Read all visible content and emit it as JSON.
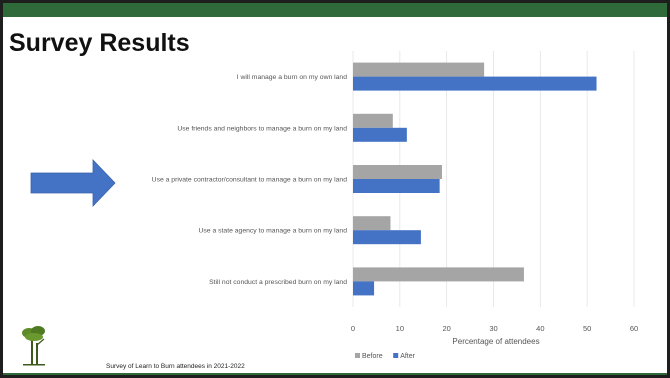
{
  "slide": {
    "title": "Survey Results",
    "footnote": "Survey of Learn to Burn attendees in 2021-2022",
    "arrow_color": "#4472c4",
    "band_color": "#2f6b3a"
  },
  "chart_data": {
    "type": "bar",
    "orientation": "horizontal",
    "categories": [
      "I will manage a burn on my own land",
      "Use friends and neighbors to manage a burn on my land",
      "Use a private contractor/consultant to manage a burn on my land",
      "Use a state agency to manage a burn on my land",
      "Still not conduct a prescribed burn on my land"
    ],
    "series": [
      {
        "name": "Before",
        "color": "#a5a5a5",
        "values": [
          28,
          8.5,
          19,
          8,
          36.5
        ]
      },
      {
        "name": "After",
        "color": "#4472c4",
        "values": [
          52,
          11.5,
          18.5,
          14.5,
          4.5
        ]
      }
    ],
    "xlabel": "Percentage of attendees",
    "ylabel": "",
    "xlim": [
      0,
      60
    ],
    "xticks": [
      0,
      10,
      20,
      30,
      40,
      50,
      60
    ],
    "grid": true,
    "legend_position": "bottom-left"
  }
}
